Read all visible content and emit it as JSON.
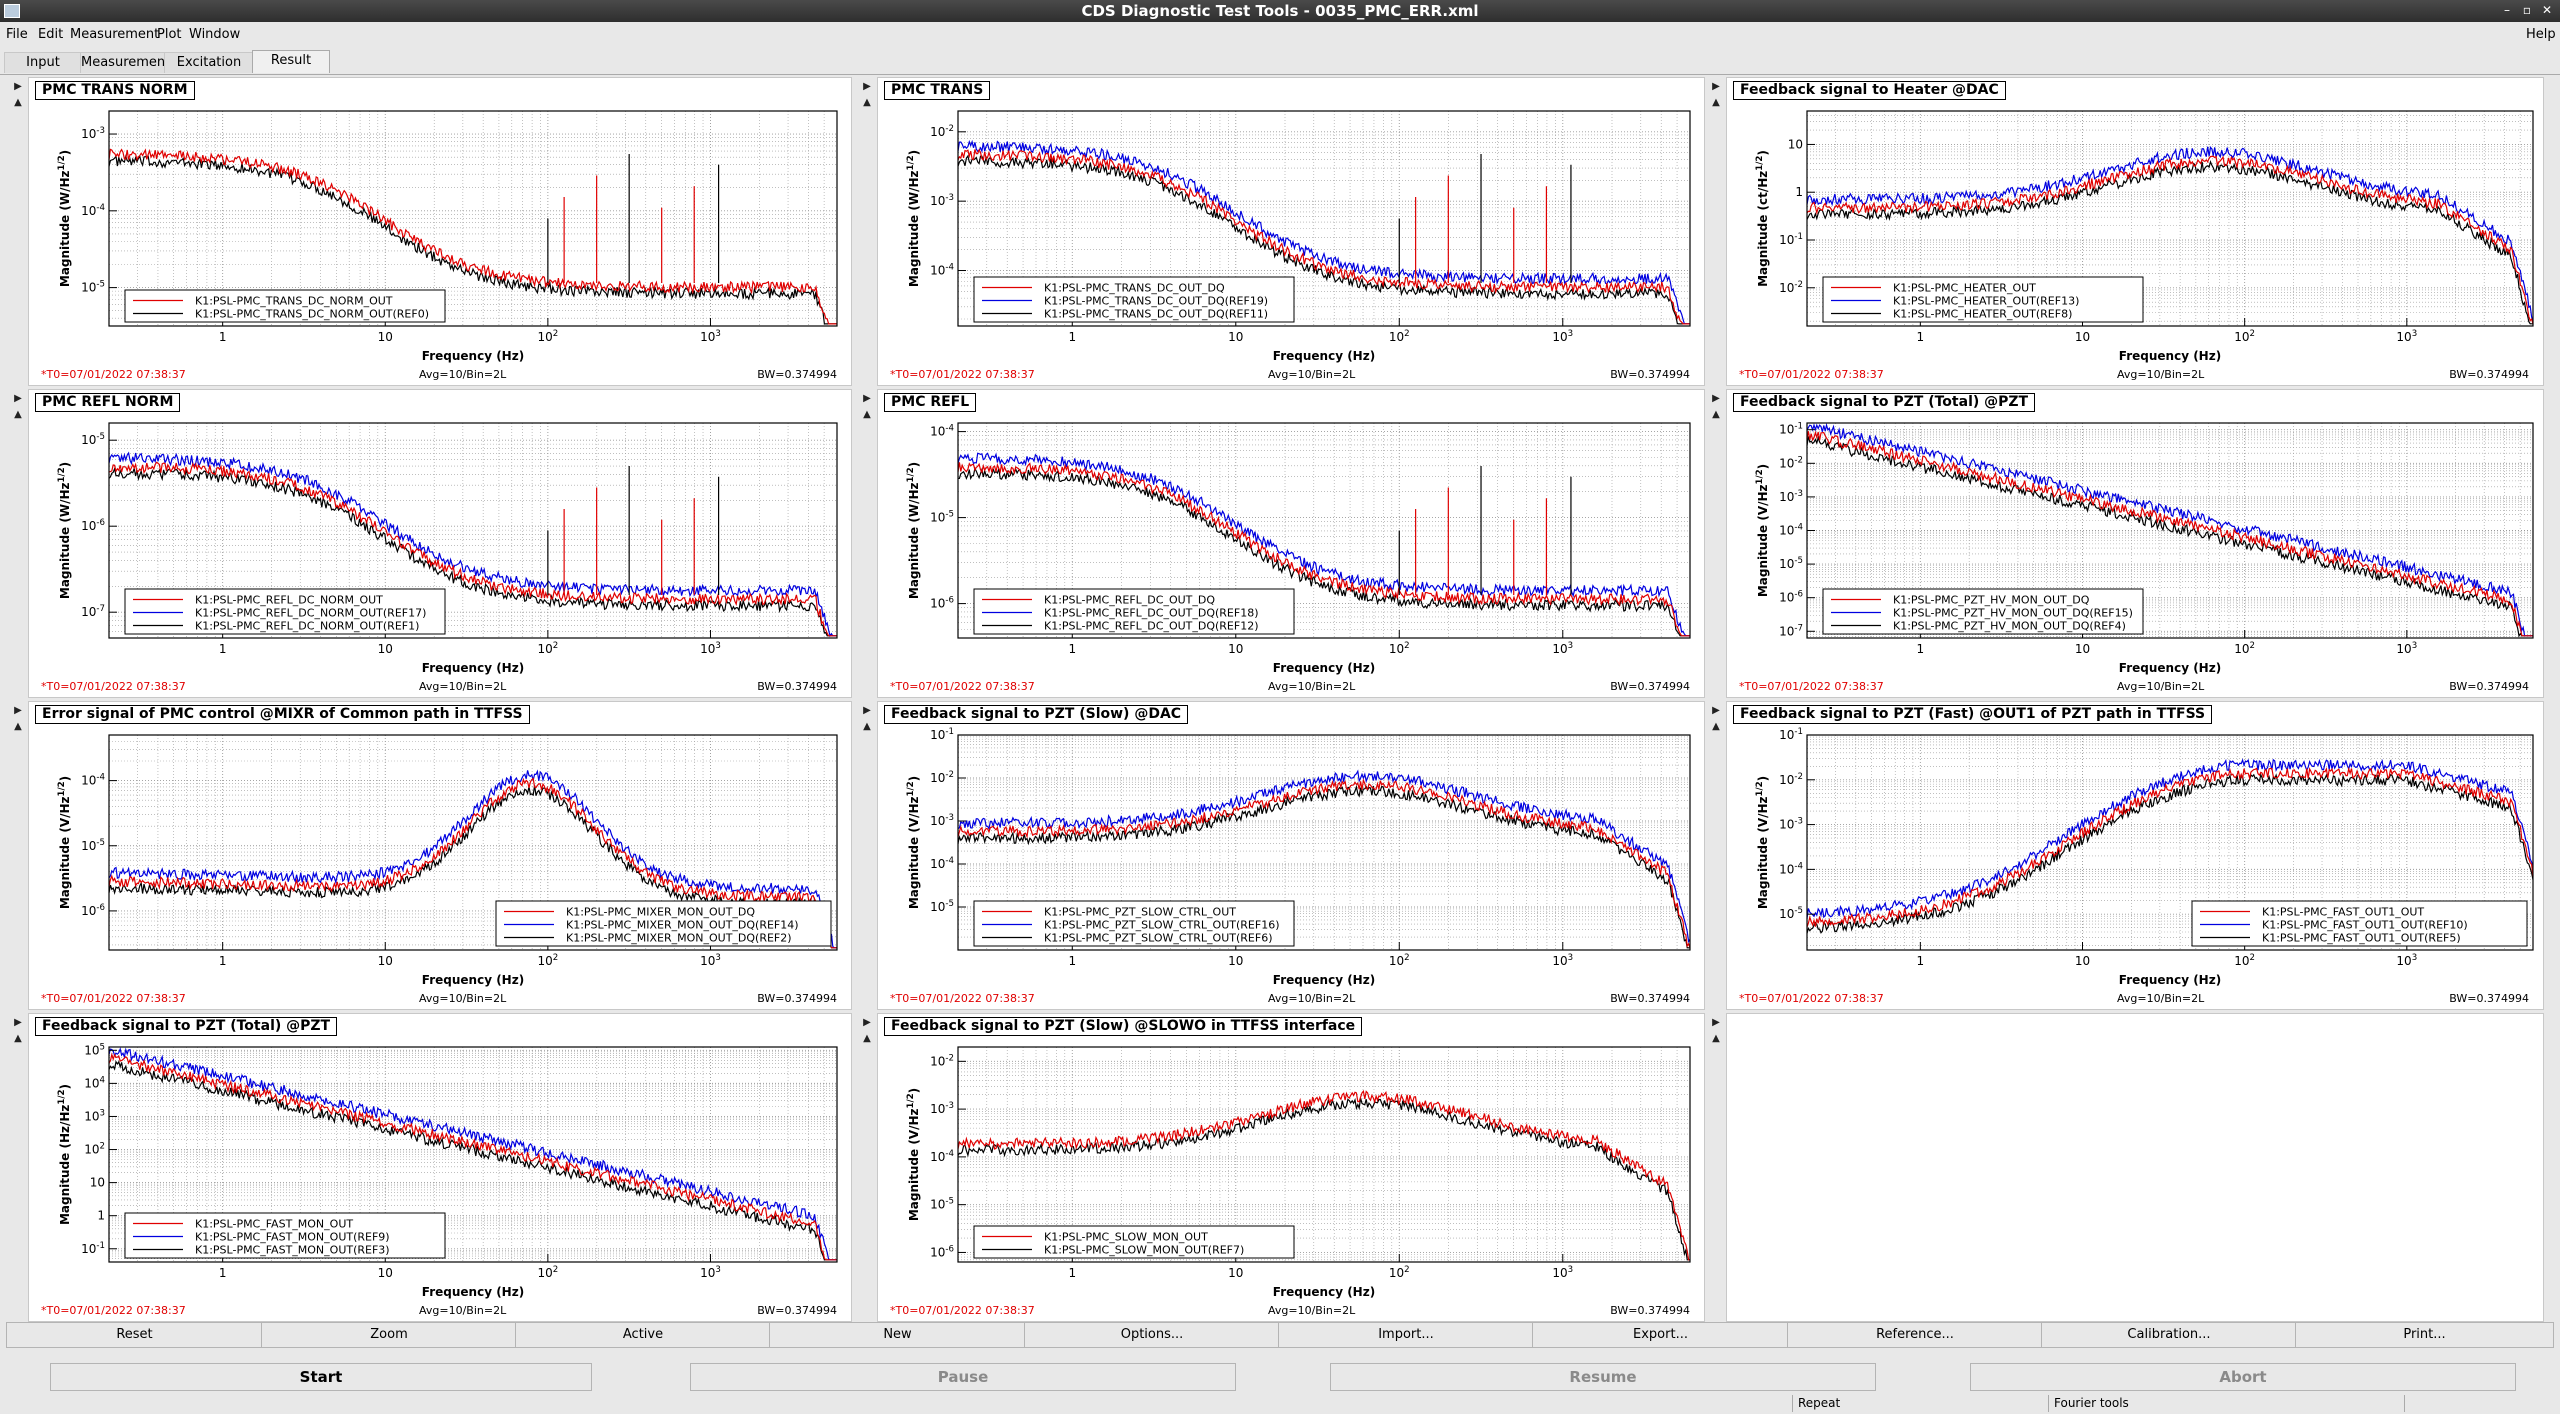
{
  "window": {
    "title": "CDS Diagnostic Test Tools - 0035_PMC_ERR.xml",
    "help": "Help",
    "controls": [
      "–",
      "▫",
      "✕"
    ]
  },
  "menu": [
    {
      "label": "File"
    },
    {
      "label": "Edit"
    },
    {
      "label": "Measurement"
    },
    {
      "label": "Plot"
    },
    {
      "label": "Window"
    }
  ],
  "tabs": [
    {
      "label": "Input"
    },
    {
      "label": "Measurement"
    },
    {
      "label": "Excitation"
    },
    {
      "label": "Result"
    }
  ],
  "active_tab": "Result",
  "common": {
    "t0": "*T0=07/01/2022 07:38:37",
    "avg": "Avg=10/Bin=2L",
    "bw": "BW=0.374994",
    "xlabel": "Frequency (Hz)",
    "xticks": [
      "1",
      "10",
      "10^2",
      "10^3"
    ],
    "x_range_hz": [
      0.2,
      6000
    ]
  },
  "panels": [
    {
      "title": "PMC TRANS NORM",
      "ylabel": "Magnitude (W/Hz^{1/2})",
      "y_range": [
        -5.5,
        -2.7
      ],
      "ytick_exps": [
        -5,
        -4,
        -3
      ],
      "legend_pos": "bottom-left",
      "trace_style": "flat-peaks",
      "legend": [
        {
          "name": "K1:PSL-PMC_TRANS_DC_NORM_OUT",
          "color": "#e00000"
        },
        {
          "name": "K1:PSL-PMC_TRANS_DC_NORM_OUT(REF0)",
          "color": "#000000"
        }
      ]
    },
    {
      "title": "PMC TRANS",
      "ylabel": "Magnitude (W/Hz^{1/2})",
      "y_range": [
        -4.8,
        -1.7
      ],
      "ytick_exps": [
        -4,
        -3,
        -2
      ],
      "legend_pos": "bottom-left",
      "trace_style": "flat-peaks",
      "legend": [
        {
          "name": "K1:PSL-PMC_TRANS_DC_OUT_DQ",
          "color": "#e00000"
        },
        {
          "name": "K1:PSL-PMC_TRANS_DC_OUT_DQ(REF19)",
          "color": "#0000e0"
        },
        {
          "name": "K1:PSL-PMC_TRANS_DC_OUT_DQ(REF11)",
          "color": "#000000"
        }
      ]
    },
    {
      "title": "Feedback signal to Heater @DAC",
      "ylabel": "Magnitude (ct/Hz^{1/2})",
      "y_range": [
        -2.8,
        1.7
      ],
      "ytick_exps": [
        -2,
        -1,
        0,
        1
      ],
      "ytick_text": [
        "10^{-2}",
        "10^{-1}",
        "1",
        "10"
      ],
      "legend_pos": "bottom-left",
      "trace_style": "hump",
      "legend": [
        {
          "name": "K1:PSL-PMC_HEATER_OUT",
          "color": "#e00000"
        },
        {
          "name": "K1:PSL-PMC_HEATER_OUT(REF13)",
          "color": "#0000e0"
        },
        {
          "name": "K1:PSL-PMC_HEATER_OUT(REF8)",
          "color": "#000000"
        }
      ]
    },
    {
      "title": "PMC REFL NORM",
      "ylabel": "Magnitude (W/Hz^{1/2})",
      "y_range": [
        -7.3,
        -4.8
      ],
      "ytick_exps": [
        -7,
        -6,
        -5
      ],
      "legend_pos": "bottom-left",
      "trace_style": "flat-peaks",
      "legend": [
        {
          "name": "K1:PSL-PMC_REFL_DC_NORM_OUT",
          "color": "#e00000"
        },
        {
          "name": "K1:PSL-PMC_REFL_DC_NORM_OUT(REF17)",
          "color": "#0000e0"
        },
        {
          "name": "K1:PSL-PMC_REFL_DC_NORM_OUT(REF1)",
          "color": "#000000"
        }
      ]
    },
    {
      "title": "PMC REFL",
      "ylabel": "Magnitude (W/Hz^{1/2})",
      "y_range": [
        -6.4,
        -3.9
      ],
      "ytick_exps": [
        -6,
        -5,
        -4
      ],
      "legend_pos": "bottom-left",
      "trace_style": "flat-peaks",
      "legend": [
        {
          "name": "K1:PSL-PMC_REFL_DC_OUT_DQ",
          "color": "#e00000"
        },
        {
          "name": "K1:PSL-PMC_REFL_DC_OUT_DQ(REF18)",
          "color": "#0000e0"
        },
        {
          "name": "K1:PSL-PMC_REFL_DC_OUT_DQ(REF12)",
          "color": "#000000"
        }
      ]
    },
    {
      "title": "Feedback signal to PZT (Total) @PZT",
      "ylabel": "Magnitude (V/Hz^{1/2})",
      "y_range": [
        -7.2,
        -0.8
      ],
      "ytick_exps": [
        -7,
        -6,
        -5,
        -4,
        -3,
        -2,
        -1
      ],
      "legend_pos": "bottom-left",
      "trace_style": "falling",
      "legend": [
        {
          "name": "K1:PSL-PMC_PZT_HV_MON_OUT_DQ",
          "color": "#e00000"
        },
        {
          "name": "K1:PSL-PMC_PZT_HV_MON_OUT_DQ(REF15)",
          "color": "#0000e0"
        },
        {
          "name": "K1:PSL-PMC_PZT_HV_MON_OUT_DQ(REF4)",
          "color": "#000000"
        }
      ]
    },
    {
      "title": "Error signal of PMC control @MIXR of Common path in TTFSS",
      "ylabel": "Magnitude (V/Hz^{1/2})",
      "y_range": [
        -6.6,
        -3.3
      ],
      "ytick_exps": [
        -6,
        -5,
        -4
      ],
      "legend_pos": "bottom-right",
      "trace_style": "mixer",
      "legend": [
        {
          "name": "K1:PSL-PMC_MIXER_MON_OUT_DQ",
          "color": "#e00000"
        },
        {
          "name": "K1:PSL-PMC_MIXER_MON_OUT_DQ(REF14)",
          "color": "#0000e0"
        },
        {
          "name": "K1:PSL-PMC_MIXER_MON_OUT_DQ(REF2)",
          "color": "#000000"
        }
      ]
    },
    {
      "title": "Feedback signal to PZT (Slow) @DAC",
      "ylabel": "Magnitude (V/Hz^{1/2})",
      "y_range": [
        -6,
        -1
      ],
      "ytick_exps": [
        -5,
        -4,
        -3,
        -2,
        -1
      ],
      "legend_pos": "bottom-left",
      "trace_style": "hump",
      "legend": [
        {
          "name": "K1:PSL-PMC_PZT_SLOW_CTRL_OUT",
          "color": "#e00000"
        },
        {
          "name": "K1:PSL-PMC_PZT_SLOW_CTRL_OUT(REF16)",
          "color": "#0000e0"
        },
        {
          "name": "K1:PSL-PMC_PZT_SLOW_CTRL_OUT(REF6)",
          "color": "#000000"
        }
      ]
    },
    {
      "title": "Feedback signal to PZT (Fast) @OUT1 of PZT path in TTFSS",
      "ylabel": "Magnitude (V/Hz^{1/2})",
      "y_range": [
        -5.8,
        -1
      ],
      "ytick_exps": [
        -5,
        -4,
        -3,
        -2,
        -1
      ],
      "legend_pos": "bottom-right",
      "trace_style": "fast",
      "legend": [
        {
          "name": "K1:PSL-PMC_FAST_OUT1_OUT",
          "color": "#e00000"
        },
        {
          "name": "K1:PSL-PMC_FAST_OUT1_OUT(REF10)",
          "color": "#0000e0"
        },
        {
          "name": "K1:PSL-PMC_FAST_OUT1_OUT(REF5)",
          "color": "#000000"
        }
      ]
    },
    {
      "title": "Feedback signal to PZT (Total) @PZT",
      "ylabel": "Magnitude (Hz/Hz^{1/2})",
      "y_range": [
        -1.4,
        5.1
      ],
      "ytick_exps": [
        -1,
        0,
        1,
        2,
        3,
        4,
        5
      ],
      "ytick_text": [
        "10^{-1}",
        "1",
        "10",
        "10^2",
        "10^3",
        "10^4",
        "10^5"
      ],
      "legend_pos": "bottom-left",
      "trace_style": "falling",
      "legend": [
        {
          "name": "K1:PSL-PMC_FAST_MON_OUT",
          "color": "#e00000"
        },
        {
          "name": "K1:PSL-PMC_FAST_MON_OUT(REF9)",
          "color": "#0000e0"
        },
        {
          "name": "K1:PSL-PMC_FAST_MON_OUT(REF3)",
          "color": "#000000"
        }
      ]
    },
    {
      "title": "Feedback signal to PZT (Slow) @SLOWO in TTFSS interface",
      "ylabel": "Magnitude (V/Hz^{1/2})",
      "y_range": [
        -6.2,
        -1.7
      ],
      "ytick_exps": [
        -6,
        -5,
        -4,
        -3,
        -2
      ],
      "legend_pos": "bottom-left",
      "trace_style": "hump",
      "legend": [
        {
          "name": "K1:PSL-PMC_SLOW_MON_OUT",
          "color": "#e00000"
        },
        {
          "name": "K1:PSL-PMC_SLOW_MON_OUT(REF7)",
          "color": "#000000"
        }
      ]
    }
  ],
  "buttons_row1": [
    {
      "label": "Reset"
    },
    {
      "label": "Zoom"
    },
    {
      "label": "Active"
    },
    {
      "label": "New"
    },
    {
      "label": "Options..."
    },
    {
      "label": "Import..."
    },
    {
      "label": "Export..."
    },
    {
      "label": "Reference..."
    },
    {
      "label": "Calibration..."
    },
    {
      "label": "Print..."
    }
  ],
  "buttons_row2": [
    {
      "label": "Start",
      "enabled": true
    },
    {
      "label": "Pause",
      "enabled": false
    },
    {
      "label": "Resume",
      "enabled": false
    },
    {
      "label": "Abort",
      "enabled": false
    }
  ],
  "status": {
    "repeat": "Repeat",
    "mode": "Fourier tools"
  }
}
